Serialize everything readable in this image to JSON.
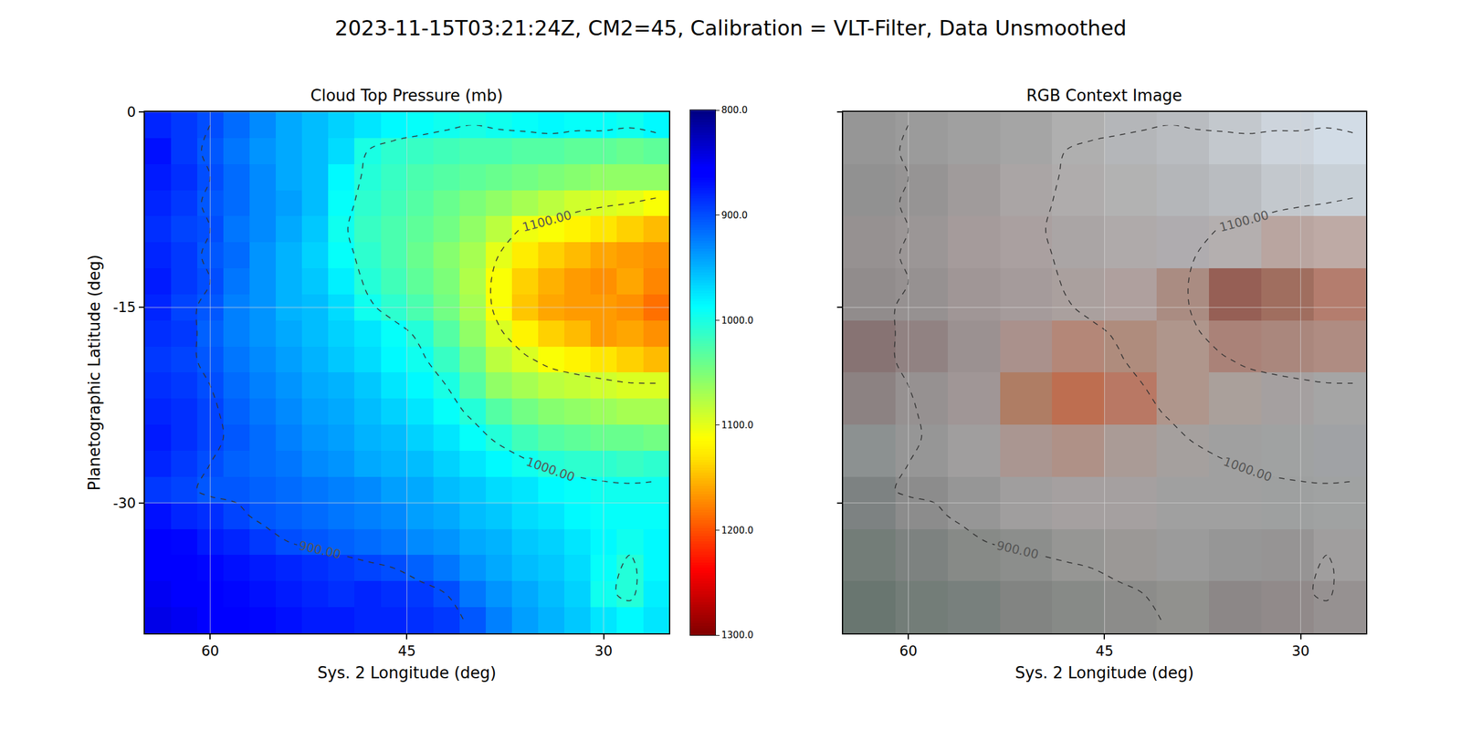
{
  "title": "2023-11-15T03:21:24Z, CM2=45, Calibration = VLT-Filter, Data Unsmoothed",
  "chart_data": [
    {
      "type": "heatmap",
      "title": "Cloud Top Pressure (mb)",
      "x_label": "Sys. 2 Longitude (deg)",
      "y_label": "Planetographic Latitude (deg)",
      "x": [
        64,
        62,
        60,
        58,
        56,
        54,
        52,
        50,
        48,
        46,
        44,
        42,
        40,
        38,
        36,
        34,
        32,
        30,
        28,
        26
      ],
      "y": [
        -1,
        -3,
        -5,
        -7,
        -9,
        -11,
        -13,
        -15,
        -17,
        -19,
        -21,
        -23,
        -25,
        -27,
        -29,
        -31,
        -33,
        -35,
        -37,
        -39
      ],
      "z": [
        [
          880,
          890,
          900,
          915,
          930,
          945,
          955,
          965,
          975,
          985,
          990,
          995,
          1000,
          995,
          990,
          985,
          990,
          990,
          995,
          985
        ],
        [
          870,
          890,
          905,
          920,
          935,
          945,
          955,
          970,
          1000,
          1010,
          1015,
          1020,
          1025,
          1025,
          1030,
          1030,
          1035,
          1035,
          1040,
          1035
        ],
        [
          875,
          885,
          900,
          915,
          930,
          945,
          955,
          985,
          1005,
          1015,
          1025,
          1030,
          1035,
          1040,
          1045,
          1050,
          1055,
          1060,
          1060,
          1060
        ],
        [
          880,
          890,
          905,
          915,
          930,
          940,
          955,
          990,
          1010,
          1020,
          1030,
          1040,
          1050,
          1060,
          1070,
          1080,
          1090,
          1095,
          1100,
          1110
        ],
        [
          885,
          895,
          900,
          920,
          930,
          945,
          960,
          995,
          1015,
          1025,
          1035,
          1045,
          1060,
          1080,
          1105,
          1110,
          1120,
          1130,
          1140,
          1150
        ],
        [
          880,
          890,
          905,
          915,
          935,
          950,
          965,
          990,
          1010,
          1025,
          1040,
          1055,
          1070,
          1100,
          1125,
          1140,
          1150,
          1160,
          1165,
          1170
        ],
        [
          875,
          890,
          900,
          920,
          935,
          950,
          960,
          980,
          1005,
          1020,
          1035,
          1050,
          1075,
          1110,
          1140,
          1155,
          1165,
          1170,
          1160,
          1175
        ],
        [
          880,
          895,
          905,
          925,
          935,
          950,
          955,
          970,
          995,
          1010,
          1025,
          1045,
          1070,
          1110,
          1145,
          1160,
          1165,
          1165,
          1170,
          1185
        ],
        [
          885,
          890,
          910,
          925,
          935,
          945,
          955,
          965,
          975,
          990,
          1005,
          1030,
          1060,
          1095,
          1120,
          1140,
          1150,
          1165,
          1160,
          1170
        ],
        [
          890,
          895,
          905,
          920,
          930,
          940,
          950,
          960,
          970,
          985,
          995,
          1015,
          1045,
          1080,
          1095,
          1110,
          1120,
          1130,
          1140,
          1150
        ],
        [
          885,
          890,
          900,
          915,
          925,
          935,
          945,
          950,
          960,
          975,
          985,
          1000,
          1030,
          1060,
          1070,
          1080,
          1085,
          1090,
          1095,
          1095
        ],
        [
          880,
          885,
          895,
          910,
          920,
          930,
          940,
          945,
          955,
          965,
          975,
          990,
          1005,
          1030,
          1045,
          1055,
          1060,
          1065,
          1070,
          1070
        ],
        [
          875,
          885,
          895,
          905,
          915,
          925,
          935,
          940,
          950,
          955,
          965,
          975,
          990,
          1005,
          1020,
          1030,
          1035,
          1040,
          1040,
          1045
        ],
        [
          880,
          890,
          900,
          910,
          915,
          920,
          930,
          935,
          945,
          950,
          955,
          965,
          975,
          985,
          995,
          1005,
          1010,
          1010,
          1015,
          1010
        ],
        [
          890,
          895,
          905,
          905,
          910,
          915,
          920,
          925,
          930,
          940,
          945,
          955,
          960,
          970,
          975,
          985,
          990,
          995,
          995,
          995
        ],
        [
          870,
          880,
          885,
          895,
          905,
          910,
          915,
          920,
          925,
          930,
          940,
          945,
          955,
          960,
          970,
          975,
          985,
          990,
          990,
          990
        ],
        [
          860,
          865,
          875,
          880,
          890,
          900,
          905,
          910,
          915,
          920,
          930,
          935,
          945,
          950,
          960,
          965,
          975,
          985,
          995,
          985
        ],
        [
          855,
          860,
          865,
          870,
          875,
          880,
          885,
          890,
          895,
          900,
          910,
          920,
          935,
          945,
          955,
          960,
          970,
          990,
          1005,
          985
        ],
        [
          850,
          855,
          860,
          865,
          870,
          875,
          880,
          885,
          880,
          885,
          890,
          900,
          920,
          935,
          945,
          955,
          965,
          995,
          1005,
          980
        ],
        [
          845,
          850,
          855,
          860,
          865,
          870,
          875,
          875,
          880,
          880,
          885,
          890,
          905,
          925,
          940,
          950,
          960,
          975,
          985,
          975
        ]
      ],
      "xlim": [
        65,
        25
      ],
      "ylim": [
        -40,
        0
      ],
      "xticks": [
        60,
        45,
        30
      ],
      "yticks": [
        0,
        -15,
        -30
      ],
      "grid": true,
      "colorbar_range": [
        800,
        1300
      ],
      "colorbar_ticks": [
        {
          "value": 800,
          "label": "800.0"
        },
        {
          "value": 900,
          "label": "900.0"
        },
        {
          "value": 1000,
          "label": "1000.0"
        },
        {
          "value": 1100,
          "label": "1100.0"
        },
        {
          "value": 1200,
          "label": "1200.0"
        },
        {
          "value": 1300,
          "label": "1300.0"
        }
      ],
      "contour_levels": [
        {
          "value": 900,
          "label": "900.00"
        },
        {
          "value": 1000,
          "label": "1000.00"
        },
        {
          "value": 1100,
          "label": "1100.00"
        }
      ]
    },
    {
      "type": "image",
      "title": "RGB Context Image",
      "x_label": "Sys. 2 Longitude (deg)",
      "x": [
        63,
        59,
        55,
        51,
        47,
        43,
        39,
        35,
        31,
        27
      ],
      "y": [
        -2,
        -6,
        -10,
        -14,
        -18,
        -22,
        -26,
        -30,
        -34,
        -38
      ],
      "pixels": [
        [
          [
            150,
            150,
            150
          ],
          [
            155,
            155,
            155
          ],
          [
            160,
            160,
            160
          ],
          [
            165,
            165,
            165
          ],
          [
            175,
            175,
            175
          ],
          [
            180,
            182,
            185
          ],
          [
            185,
            188,
            192
          ],
          [
            195,
            200,
            205
          ],
          [
            205,
            212,
            220
          ],
          [
            210,
            220,
            230
          ]
        ],
        [
          [
            145,
            145,
            145
          ],
          [
            150,
            148,
            148
          ],
          [
            160,
            155,
            155
          ],
          [
            170,
            165,
            165
          ],
          [
            175,
            172,
            172
          ],
          [
            178,
            178,
            178
          ],
          [
            180,
            182,
            185
          ],
          [
            185,
            188,
            192
          ],
          [
            195,
            200,
            205
          ],
          [
            200,
            208,
            215
          ]
        ],
        [
          [
            150,
            145,
            145
          ],
          [
            155,
            150,
            150
          ],
          [
            165,
            155,
            155
          ],
          [
            170,
            160,
            160
          ],
          [
            170,
            165,
            165
          ],
          [
            175,
            170,
            170
          ],
          [
            175,
            172,
            175
          ],
          [
            180,
            175,
            175
          ],
          [
            185,
            165,
            160
          ],
          [
            190,
            170,
            165
          ]
        ],
        [
          [
            145,
            140,
            140
          ],
          [
            150,
            145,
            145
          ],
          [
            160,
            150,
            150
          ],
          [
            165,
            155,
            155
          ],
          [
            170,
            160,
            158
          ],
          [
            175,
            160,
            158
          ],
          [
            170,
            140,
            130
          ],
          [
            150,
            95,
            85
          ],
          [
            160,
            110,
            95
          ],
          [
            180,
            125,
            110
          ]
        ],
        [
          [
            135,
            115,
            115
          ],
          [
            145,
            130,
            130
          ],
          [
            155,
            145,
            145
          ],
          [
            170,
            145,
            140
          ],
          [
            180,
            135,
            120
          ],
          [
            175,
            140,
            125
          ],
          [
            175,
            150,
            140
          ],
          [
            170,
            130,
            120
          ],
          [
            170,
            135,
            125
          ],
          [
            175,
            140,
            130
          ]
        ],
        [
          [
            140,
            130,
            130
          ],
          [
            150,
            145,
            145
          ],
          [
            160,
            150,
            150
          ],
          [
            175,
            125,
            100
          ],
          [
            190,
            110,
            80
          ],
          [
            185,
            120,
            100
          ],
          [
            175,
            150,
            140
          ],
          [
            170,
            160,
            155
          ],
          [
            165,
            160,
            160
          ],
          [
            165,
            165,
            165
          ]
        ],
        [
          [
            140,
            145,
            145
          ],
          [
            150,
            150,
            150
          ],
          [
            160,
            158,
            158
          ],
          [
            170,
            150,
            145
          ],
          [
            175,
            145,
            135
          ],
          [
            170,
            155,
            150
          ],
          [
            165,
            160,
            158
          ],
          [
            160,
            160,
            160
          ],
          [
            160,
            162,
            162
          ],
          [
            160,
            162,
            165
          ]
        ],
        [
          [
            125,
            130,
            130
          ],
          [
            140,
            140,
            140
          ],
          [
            150,
            150,
            150
          ],
          [
            160,
            158,
            158
          ],
          [
            165,
            160,
            160
          ],
          [
            165,
            160,
            160
          ],
          [
            160,
            160,
            160
          ],
          [
            160,
            160,
            160
          ],
          [
            158,
            160,
            160
          ],
          [
            160,
            162,
            162
          ]
        ],
        [
          [
            115,
            125,
            120
          ],
          [
            125,
            130,
            128
          ],
          [
            135,
            138,
            135
          ],
          [
            140,
            142,
            140
          ],
          [
            150,
            150,
            148
          ],
          [
            155,
            152,
            150
          ],
          [
            155,
            155,
            155
          ],
          [
            150,
            150,
            150
          ],
          [
            150,
            148,
            148
          ],
          [
            160,
            158,
            158
          ]
        ],
        [
          [
            105,
            118,
            112
          ],
          [
            115,
            125,
            120
          ],
          [
            120,
            128,
            125
          ],
          [
            130,
            132,
            130
          ],
          [
            135,
            138,
            135
          ],
          [
            140,
            140,
            138
          ],
          [
            145,
            145,
            142
          ],
          [
            140,
            135,
            135
          ],
          [
            145,
            138,
            138
          ],
          [
            150,
            145,
            145
          ]
        ]
      ],
      "xlim": [
        65,
        25
      ],
      "ylim": [
        -40,
        0
      ],
      "xticks": [
        60,
        45,
        30
      ],
      "yticks": [
        0,
        -15,
        -30
      ],
      "grid": true,
      "tick_labels": "x",
      "contour_levels": [
        {
          "value": 900,
          "label": "900.00"
        },
        {
          "value": 1000,
          "label": "1000.00"
        },
        {
          "value": 1100,
          "label": "1100.00"
        }
      ]
    }
  ]
}
